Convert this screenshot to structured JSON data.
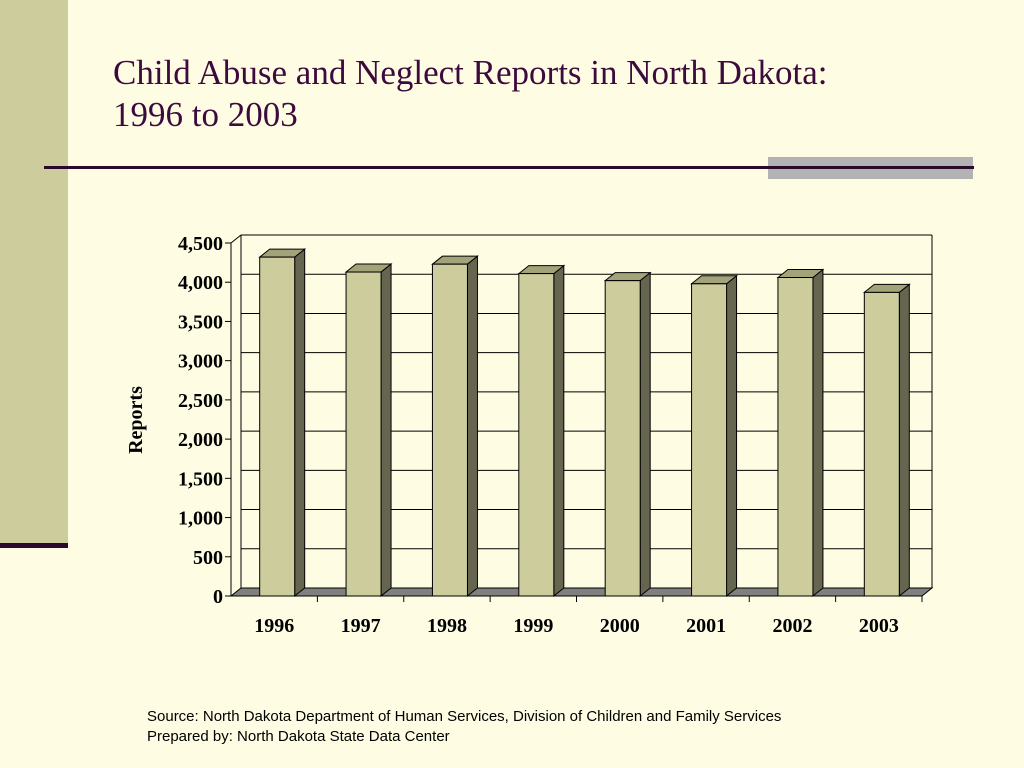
{
  "slide": {
    "title_line1": "Child Abuse and Neglect Reports in North Dakota:",
    "title_line2": "1996 to 2003",
    "source": "Source: North Dakota Department of Human Services, Division of Children and Family Services",
    "prepared_by": "Prepared by: North Dakota State Data Center"
  },
  "colors": {
    "background": "#fefde3",
    "band": "#cccc9d",
    "accent_line": "#2a0a2a",
    "title": "#3d0a3d",
    "bar_front": "#cccc9d",
    "bar_side": "#666650",
    "floor": "#808080"
  },
  "chart_data": {
    "type": "bar",
    "title": "",
    "xlabel": "",
    "ylabel": "Reports",
    "categories": [
      "1996",
      "1997",
      "1998",
      "1999",
      "2000",
      "2001",
      "2002",
      "2003"
    ],
    "values": [
      4320,
      4130,
      4230,
      4110,
      4020,
      3980,
      4060,
      3870
    ],
    "ylim": [
      0,
      4500
    ],
    "yticks": [
      0,
      500,
      1000,
      1500,
      2000,
      2500,
      3000,
      3500,
      4000,
      4500
    ],
    "ytick_labels": [
      "0",
      "500",
      "1,000",
      "1,500",
      "2,000",
      "2,500",
      "3,000",
      "3,500",
      "4,000",
      "4,500"
    ],
    "grid": true,
    "legend": "none",
    "style": "3d"
  }
}
